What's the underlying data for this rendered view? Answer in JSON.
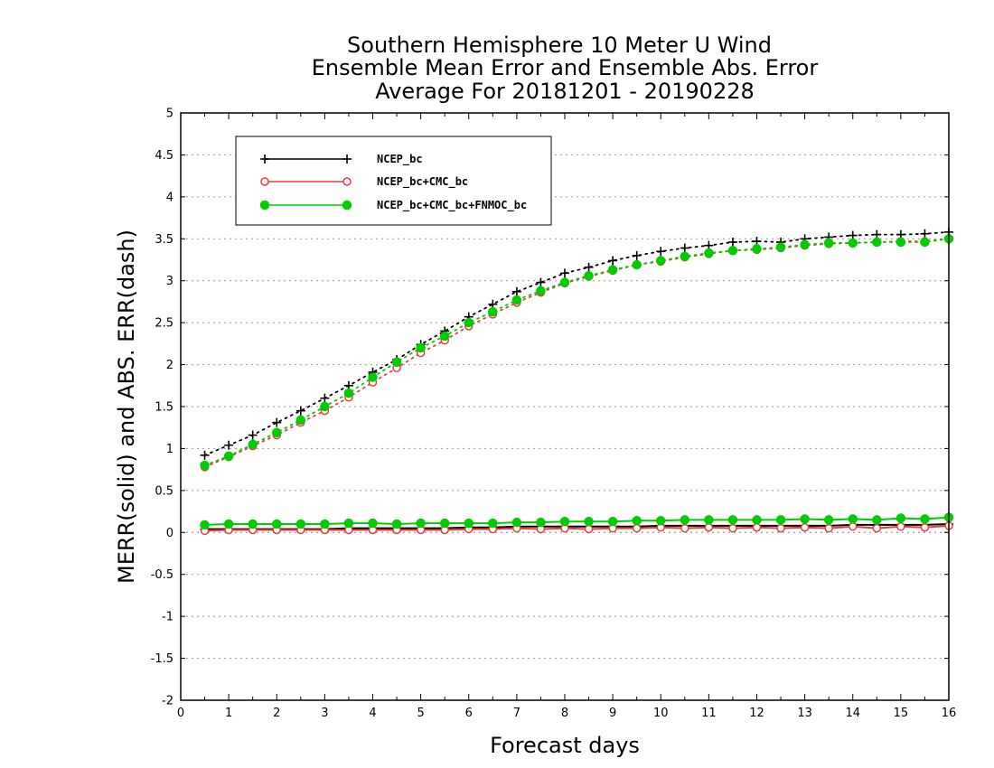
{
  "chart_data": {
    "type": "line",
    "title_lines": [
      "Southern Hemisphere 10 Meter U Wind",
      "Ensemble Mean Error and Ensemble Abs. Error",
      "Average For 20181201 - 20190228"
    ],
    "xlabel": "Forecast days",
    "ylabel": "MERR(solid) and ABS. ERR(dash)",
    "xlim": [
      0,
      16
    ],
    "ylim": [
      -2,
      5
    ],
    "xticks": [
      "0",
      "1",
      "2",
      "3",
      "4",
      "5",
      "6",
      "7",
      "8",
      "9",
      "10",
      "11",
      "12",
      "13",
      "14",
      "15",
      "16"
    ],
    "yticks": [
      "-2",
      "-1.5",
      "-1",
      "-0.5",
      "0",
      "0.5",
      "1",
      "1.5",
      "2",
      "2.5",
      "3",
      "3.5",
      "4",
      "4.5",
      "5"
    ],
    "grid": "dotted horizontal",
    "legend_position": "top-left",
    "x": [
      0.5,
      1,
      1.5,
      2,
      2.5,
      3,
      3.5,
      4,
      4.5,
      5,
      5.5,
      6,
      6.5,
      7,
      7.5,
      8,
      8.5,
      9,
      9.5,
      10,
      10.5,
      11,
      11.5,
      12,
      12.5,
      13,
      13.5,
      14,
      14.5,
      15,
      15.5,
      16
    ],
    "series": [
      {
        "name": "NCEP_bc",
        "color": "#000000",
        "marker": "plus",
        "abs_err": [
          0.92,
          1.04,
          1.16,
          1.31,
          1.45,
          1.6,
          1.75,
          1.91,
          2.06,
          2.24,
          2.4,
          2.57,
          2.72,
          2.87,
          2.98,
          3.09,
          3.16,
          3.24,
          3.3,
          3.35,
          3.39,
          3.42,
          3.46,
          3.47,
          3.46,
          3.5,
          3.52,
          3.54,
          3.55,
          3.55,
          3.56,
          3.58
        ],
        "mean_err": [
          0.04,
          0.04,
          0.04,
          0.04,
          0.04,
          0.04,
          0.05,
          0.05,
          0.05,
          0.05,
          0.05,
          0.06,
          0.06,
          0.07,
          0.07,
          0.07,
          0.07,
          0.07,
          0.07,
          0.08,
          0.08,
          0.08,
          0.08,
          0.08,
          0.08,
          0.08,
          0.08,
          0.09,
          0.09,
          0.09,
          0.09,
          0.1
        ]
      },
      {
        "name": "NCEP_bc+CMC_bc",
        "color": "#ee3a3a",
        "marker": "open-circle",
        "abs_err": [
          0.78,
          0.9,
          1.03,
          1.16,
          1.31,
          1.45,
          1.61,
          1.79,
          1.96,
          2.14,
          2.29,
          2.46,
          2.6,
          2.74,
          2.86,
          2.97,
          3.05,
          3.12,
          3.19,
          3.23,
          3.28,
          3.32,
          3.36,
          3.37,
          3.39,
          3.42,
          3.44,
          3.45,
          3.46,
          3.47,
          3.47,
          3.5
        ],
        "mean_err": [
          0.02,
          0.03,
          0.03,
          0.03,
          0.03,
          0.03,
          0.03,
          0.03,
          0.03,
          0.03,
          0.03,
          0.04,
          0.04,
          0.05,
          0.04,
          0.05,
          0.04,
          0.05,
          0.05,
          0.06,
          0.05,
          0.06,
          0.05,
          0.06,
          0.05,
          0.06,
          0.05,
          0.07,
          0.05,
          0.07,
          0.06,
          0.08
        ]
      },
      {
        "name": "NCEP_bc+CMC_bc+FNMOC_bc",
        "color": "#00cc00",
        "marker": "filled-circle",
        "abs_err": [
          0.8,
          0.91,
          1.05,
          1.19,
          1.34,
          1.5,
          1.66,
          1.85,
          2.03,
          2.2,
          2.34,
          2.5,
          2.63,
          2.77,
          2.88,
          2.98,
          3.06,
          3.13,
          3.19,
          3.24,
          3.29,
          3.33,
          3.36,
          3.38,
          3.4,
          3.43,
          3.45,
          3.45,
          3.46,
          3.46,
          3.46,
          3.5
        ],
        "mean_err": [
          0.09,
          0.1,
          0.1,
          0.1,
          0.1,
          0.1,
          0.11,
          0.11,
          0.1,
          0.11,
          0.11,
          0.11,
          0.11,
          0.12,
          0.12,
          0.13,
          0.13,
          0.13,
          0.14,
          0.14,
          0.15,
          0.15,
          0.15,
          0.15,
          0.15,
          0.16,
          0.15,
          0.16,
          0.15,
          0.17,
          0.16,
          0.18
        ]
      }
    ]
  }
}
